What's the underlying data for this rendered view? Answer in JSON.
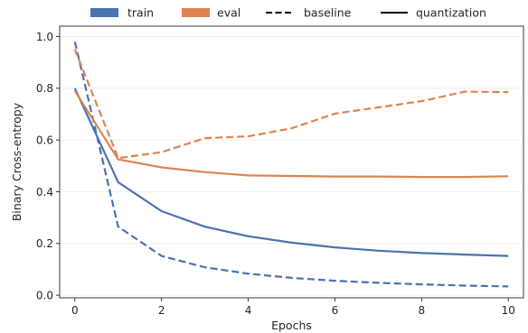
{
  "chart_data": {
    "type": "line",
    "xlabel": "Epochs",
    "ylabel": "Binary Cross-entropy",
    "xlim": [
      -0.35,
      10.35
    ],
    "ylim": [
      -0.01,
      1.04
    ],
    "xticks": [
      0,
      2,
      4,
      6,
      8,
      10
    ],
    "xtick_labels": [
      "0",
      "2",
      "4",
      "6",
      "8",
      "10"
    ],
    "yticks": [
      0.0,
      0.2,
      0.4,
      0.6,
      0.8,
      1.0
    ],
    "ytick_labels": [
      "0.0",
      "0.2",
      "0.4",
      "0.6",
      "0.8",
      "1.0"
    ],
    "grid": "horizontal",
    "legend": {
      "placement": "top",
      "entries": [
        {
          "label": "train",
          "kind": "patch",
          "color": "#4c72b0"
        },
        {
          "label": "eval",
          "kind": "patch",
          "color": "#dd8452"
        },
        {
          "label": "baseline",
          "kind": "line",
          "style": "dashed",
          "color": "#000000"
        },
        {
          "label": "quantization",
          "kind": "line",
          "style": "solid",
          "color": "#000000"
        }
      ]
    },
    "x": [
      0,
      1,
      2,
      3,
      4,
      5,
      6,
      7,
      8,
      9,
      10
    ],
    "series": [
      {
        "group": "train",
        "style": "baseline",
        "color": "#4c72b0",
        "dash": "dashed",
        "values": [
          0.98,
          0.265,
          0.152,
          0.108,
          0.083,
          0.067,
          0.056,
          0.048,
          0.042,
          0.037,
          0.034
        ]
      },
      {
        "group": "train",
        "style": "quantization",
        "color": "#4c72b0",
        "dash": "solid",
        "values": [
          0.8,
          0.437,
          0.325,
          0.265,
          0.228,
          0.203,
          0.185,
          0.172,
          0.163,
          0.157,
          0.152
        ]
      },
      {
        "group": "eval",
        "style": "baseline",
        "color": "#dd8452",
        "dash": "dashed",
        "values": [
          0.95,
          0.53,
          0.553,
          0.607,
          0.614,
          0.645,
          0.702,
          0.726,
          0.75,
          0.787,
          0.785
        ]
      },
      {
        "group": "eval",
        "style": "quantization",
        "color": "#dd8452",
        "dash": "solid",
        "values": [
          0.79,
          0.525,
          0.494,
          0.476,
          0.463,
          0.461,
          0.459,
          0.459,
          0.457,
          0.457,
          0.46
        ]
      }
    ]
  }
}
